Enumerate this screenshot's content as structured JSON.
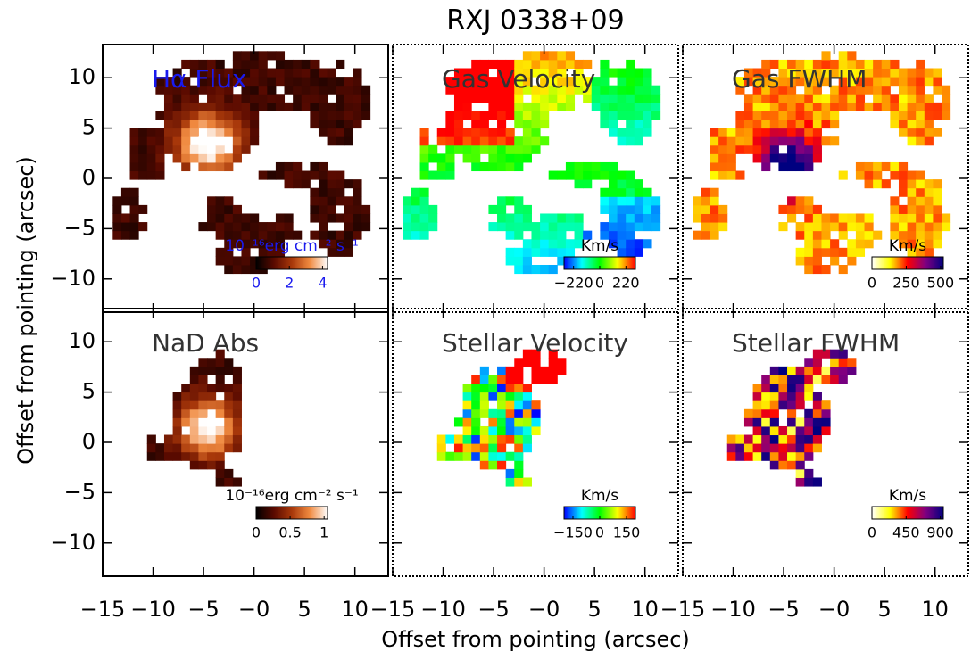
{
  "title": "RXJ 0338+09",
  "x_label": "Offset from pointing (arcsec)",
  "y_label": "Offset from pointing (arcsec)",
  "xlim": [
    -15,
    13.3
  ],
  "ylim": [
    -13.3,
    13.3
  ],
  "xticks": [
    {
      "value": -15,
      "label": "−15"
    },
    {
      "value": -10,
      "label": "−10"
    },
    {
      "value": -5,
      "label": "−5"
    },
    {
      "value": 0,
      "label": "−0"
    },
    5,
    10
  ],
  "yticks": [
    {
      "value": -10,
      "label": "−10"
    },
    {
      "value": -5,
      "label": "−5"
    },
    0,
    5,
    10
  ],
  "panels": [
    {
      "title": "Hα Flux",
      "title_color": "#1a1aee",
      "colorbar": {
        "label": "10⁻¹⁶erg cm⁻² s⁻¹",
        "label_color": "#1a1aee",
        "lim": [
          0,
          4.3
        ],
        "ticks": [
          0,
          2,
          4
        ],
        "colors": [
          "#000000",
          "#5a0a00",
          "#a8380a",
          "#f08a40",
          "#ffffff"
        ]
      }
    },
    {
      "title": "Gas Velocity",
      "title_color": "#333333",
      "colorbar": {
        "label": "Km/s",
        "label_color": "#000000",
        "lim": [
          -300,
          300
        ],
        "ticks": [
          {
            "value": -220,
            "label": "−220"
          },
          0,
          220
        ],
        "colors": [
          "#0000ff",
          "#00ffff",
          "#00ff00",
          "#ffff00",
          "#ff0000"
        ]
      }
    },
    {
      "title": "Gas FWHM",
      "title_color": "#333333",
      "colorbar": {
        "label": "Km/s",
        "label_color": "#000000",
        "lim": [
          0,
          520
        ],
        "ticks": [
          0,
          250,
          500
        ],
        "colors": [
          "#ffffff",
          "#ffff00",
          "#ff0000",
          "#800080",
          "#000080"
        ]
      }
    },
    {
      "title": "NaD Abs",
      "title_color": "#333333",
      "colorbar": {
        "label": "10⁻¹⁶erg cm⁻² s⁻¹",
        "label_color": "#000000",
        "lim": [
          0,
          1.05
        ],
        "ticks": [
          0,
          0.5,
          1
        ],
        "colors": [
          "#000000",
          "#5a0a00",
          "#a8380a",
          "#f08a40",
          "#ffffff"
        ]
      }
    },
    {
      "title": "Stellar Velocity",
      "title_color": "#333333",
      "colorbar": {
        "label": "Km/s",
        "label_color": "#000000",
        "lim": [
          -200,
          200
        ],
        "ticks": [
          {
            "value": -150,
            "label": "−150"
          },
          0,
          150
        ],
        "colors": [
          "#0000ff",
          "#00ffff",
          "#00ff00",
          "#ffff00",
          "#ff0000"
        ]
      }
    },
    {
      "title": "Stellar FWHM",
      "title_color": "#333333",
      "colorbar": {
        "label": "Km/s",
        "label_color": "#000000",
        "lim": [
          0,
          940
        ],
        "ticks": [
          0,
          450,
          900
        ],
        "colors": [
          "#ffffff",
          "#ffff00",
          "#ff0000",
          "#800080",
          "#000080"
        ]
      }
    }
  ]
}
